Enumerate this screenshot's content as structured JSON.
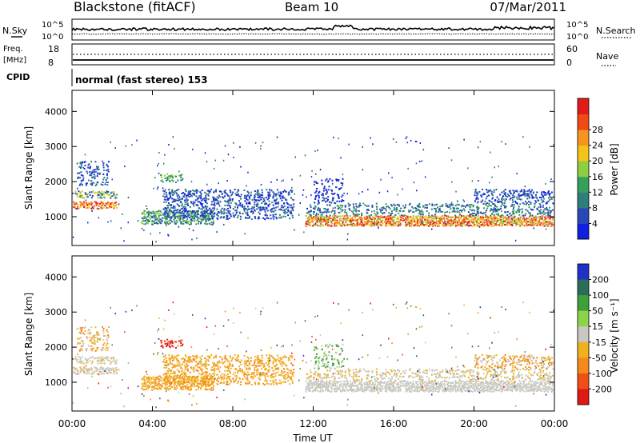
{
  "header": {
    "station": "Blackstone (fitACF)",
    "beam": "Beam 10",
    "date": "07/Mar/2011"
  },
  "top_panels": {
    "nsky_label": "N.Sky",
    "nsearch_label": "N.Search",
    "nsky_ticks": [
      "10^5",
      "10^0"
    ],
    "nsearch_ticks": [
      "10^5",
      "10^0"
    ],
    "freq_label_1": "Freq.",
    "freq_label_2": "[MHz]",
    "freq_ticks": [
      "18",
      "8"
    ],
    "nave_label": "Nave",
    "nave_ticks": [
      "60",
      "0"
    ],
    "cpid_label": "CPID",
    "cpid_text": "normal (fast stereo) 153"
  },
  "chart_data": [
    {
      "type": "heatmap",
      "name": "power",
      "ylabel": "Slant Range [km]",
      "ylim": [
        180,
        4600
      ],
      "yticks": [
        1000,
        2000,
        3000,
        4000
      ],
      "ytick_labels": [
        "1000",
        "2000",
        "3000",
        "4000"
      ],
      "xlim": [
        0,
        24
      ],
      "colorbar_label": "Power [dB]",
      "colorbar_ticks": [
        "4",
        "8",
        "12",
        "16",
        "20",
        "24",
        "28"
      ],
      "colorbar_colors": [
        "#1020e0",
        "#2848b8",
        "#2e7f7a",
        "#35a05a",
        "#8ccf40",
        "#f2c318",
        "#f7941d",
        "#f04b14",
        "#e21a1a"
      ]
    },
    {
      "type": "heatmap",
      "name": "velocity",
      "ylabel": "Slant Range [km]",
      "ylim": [
        180,
        4600
      ],
      "yticks": [
        1000,
        2000,
        3000,
        4000
      ],
      "ytick_labels": [
        "1000",
        "2000",
        "3000",
        "4000"
      ],
      "xlim": [
        0,
        24
      ],
      "xticks": [
        0,
        4,
        8,
        12,
        16,
        20,
        24
      ],
      "xtick_labels": [
        "00:00",
        "04:00",
        "08:00",
        "12:00",
        "16:00",
        "20:00",
        "00:00"
      ],
      "xlabel": "Time UT",
      "colorbar_label": "Velocity [m s⁻¹]",
      "colorbar_ticks": [
        "200",
        "100",
        "50",
        "15",
        "-15",
        "-50",
        "-100",
        "-200"
      ],
      "colorbar_colors": [
        "#2030c8",
        "#2a6e5a",
        "#3fa03a",
        "#8cd24a",
        "#c8c8c0",
        "#f0b020",
        "#f58a1a",
        "#f05018",
        "#e01818"
      ]
    }
  ]
}
